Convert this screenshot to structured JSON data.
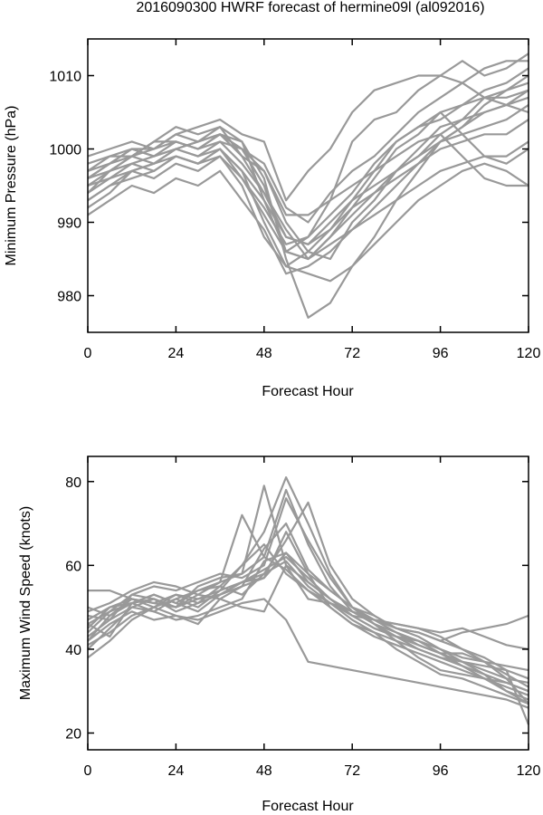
{
  "page_title": "2016090300 HWRF forecast of hermine09l (al092016)",
  "chart_data": [
    {
      "type": "line",
      "xlabel": "Forecast Hour",
      "ylabel": "Minimum Pressure (hPa)",
      "xlim": [
        0,
        120
      ],
      "ylim": [
        975,
        1015
      ],
      "xticks": [
        0,
        24,
        48,
        72,
        96,
        120
      ],
      "yticks": [
        980,
        990,
        1000,
        1010
      ],
      "grid": false,
      "line_color": "#999999",
      "x": [
        0,
        6,
        12,
        18,
        24,
        30,
        36,
        42,
        48,
        54,
        60,
        66,
        72,
        78,
        84,
        90,
        96,
        102,
        108,
        114,
        120
      ],
      "series": [
        {
          "values": [
            996,
            998,
            1000,
            999,
            1001,
            1000,
            1002,
            1001,
            996,
            985,
            977,
            979,
            984,
            988,
            993,
            997,
            1001,
            1003,
            1006,
            1008,
            1010
          ]
        },
        {
          "values": [
            994,
            997,
            999,
            1000,
            1002,
            1001,
            1003,
            1001,
            993,
            986,
            988,
            993,
            1001,
            1004,
            1005,
            1008,
            1010,
            1012,
            1010,
            1011,
            1013
          ]
        },
        {
          "values": [
            992,
            994,
            997,
            998,
            1000,
            999,
            1001,
            998,
            994,
            989,
            985,
            988,
            992,
            996,
            1000,
            1002,
            1005,
            1006,
            1008,
            1009,
            1011
          ]
        },
        {
          "values": [
            999,
            1000,
            1001,
            1000,
            1002,
            1003,
            1004,
            1002,
            1001,
            993,
            997,
            1000,
            1005,
            1008,
            1009,
            1010,
            1010,
            1009,
            1007,
            1006,
            1005
          ]
        },
        {
          "values": [
            997,
            999,
            999,
            1001,
            1003,
            1002,
            1003,
            999,
            997,
            990,
            986,
            985,
            990,
            993,
            997,
            999,
            1002,
            1004,
            1007,
            1008,
            1009
          ]
        },
        {
          "values": [
            995,
            996,
            998,
            997,
            999,
            998,
            1000,
            997,
            990,
            984,
            983,
            982,
            984,
            987,
            990,
            993,
            995,
            997,
            998,
            997,
            995
          ]
        },
        {
          "values": [
            993,
            995,
            997,
            996,
            998,
            997,
            999,
            995,
            988,
            984,
            986,
            989,
            993,
            997,
            1001,
            1003,
            1005,
            1002,
            999,
            998,
            1000
          ]
        },
        {
          "values": [
            996,
            997,
            999,
            1001,
            1001,
            1000,
            1001,
            1000,
            995,
            986,
            985,
            988,
            991,
            994,
            997,
            1000,
            1003,
            1004,
            1005,
            1006,
            1008
          ]
        },
        {
          "values": [
            998,
            999,
            1000,
            999,
            1000,
            1001,
            1002,
            1000,
            998,
            992,
            990,
            994,
            997,
            999,
            1002,
            1005,
            1007,
            1009,
            1011,
            1012,
            1012
          ]
        },
        {
          "values": [
            994,
            996,
            997,
            998,
            999,
            998,
            999,
            996,
            992,
            987,
            988,
            991,
            994,
            998,
            1001,
            1003,
            1004,
            1006,
            1007,
            1007,
            1008
          ]
        },
        {
          "values": [
            991,
            993,
            995,
            994,
            996,
            995,
            997,
            993,
            989,
            983,
            984,
            986,
            989,
            992,
            995,
            998,
            1001,
            1003,
            1005,
            1006,
            1007
          ]
        },
        {
          "values": [
            997,
            998,
            1000,
            1000,
            1001,
            1000,
            1002,
            999,
            994,
            988,
            987,
            990,
            993,
            995,
            997,
            999,
            1001,
            1002,
            1003,
            1004,
            1006
          ]
        },
        {
          "values": [
            995,
            997,
            998,
            999,
            1000,
            999,
            1000,
            997,
            993,
            988,
            987,
            989,
            992,
            994,
            996,
            998,
            1000,
            1001,
            1002,
            1002,
            1004
          ]
        },
        {
          "values": [
            996,
            998,
            999,
            998,
            1000,
            1001,
            1002,
            1000,
            997,
            991,
            991,
            993,
            995,
            997,
            999,
            1001,
            1002,
            999,
            996,
            995,
            995
          ]
        },
        {
          "values": [
            993,
            995,
            996,
            997,
            999,
            998,
            1000,
            996,
            991,
            986,
            985,
            987,
            989,
            991,
            993,
            995,
            997,
            998,
            999,
            999,
            1001
          ]
        }
      ]
    },
    {
      "type": "line",
      "xlabel": "Forecast Hour",
      "ylabel": "Maximum Wind Speed (knots)",
      "xlim": [
        0,
        120
      ],
      "ylim": [
        16,
        86
      ],
      "xticks": [
        0,
        24,
        48,
        72,
        96,
        120
      ],
      "yticks": [
        20,
        40,
        60,
        80
      ],
      "grid": false,
      "line_color": "#999999",
      "x": [
        0,
        6,
        12,
        18,
        24,
        30,
        36,
        42,
        48,
        54,
        60,
        66,
        72,
        78,
        84,
        90,
        96,
        102,
        108,
        114,
        120
      ],
      "series": [
        {
          "values": [
            42,
            48,
            52,
            50,
            53,
            51,
            55,
            60,
            68,
            81,
            70,
            58,
            50,
            46,
            42,
            40,
            38,
            36,
            34,
            32,
            30
          ]
        },
        {
          "values": [
            45,
            50,
            51,
            53,
            51,
            54,
            56,
            72,
            62,
            78,
            65,
            55,
            49,
            46,
            44,
            41,
            39,
            37,
            35,
            33,
            32
          ]
        },
        {
          "values": [
            48,
            47,
            53,
            52,
            50,
            55,
            57,
            58,
            79,
            60,
            56,
            52,
            48,
            45,
            43,
            42,
            40,
            38,
            37,
            36,
            35
          ]
        },
        {
          "values": [
            40,
            45,
            50,
            49,
            52,
            50,
            54,
            56,
            58,
            66,
            75,
            60,
            52,
            48,
            45,
            43,
            40,
            37,
            34,
            30,
            27
          ]
        },
        {
          "values": [
            54,
            54,
            52,
            51,
            50,
            52,
            53,
            55,
            57,
            63,
            58,
            54,
            50,
            47,
            44,
            42,
            39,
            36,
            33,
            30,
            28
          ]
        },
        {
          "values": [
            44,
            49,
            53,
            55,
            54,
            56,
            58,
            57,
            60,
            76,
            66,
            57,
            50,
            46,
            43,
            40,
            38,
            37,
            36,
            35,
            33
          ]
        },
        {
          "values": [
            47,
            50,
            52,
            51,
            53,
            52,
            54,
            60,
            65,
            58,
            54,
            51,
            48,
            47,
            46,
            45,
            43,
            40,
            37,
            34,
            31
          ]
        },
        {
          "values": [
            42,
            46,
            49,
            47,
            48,
            47,
            49,
            51,
            52,
            47,
            37,
            36,
            35,
            34,
            33,
            32,
            31,
            30,
            29,
            28,
            26
          ]
        },
        {
          "values": [
            46,
            43,
            51,
            52,
            50,
            53,
            52,
            50,
            49,
            60,
            52,
            51,
            49,
            47,
            45,
            44,
            42,
            40,
            38,
            35,
            22
          ]
        },
        {
          "values": [
            50,
            48,
            51,
            49,
            47,
            48,
            50,
            52,
            61,
            63,
            56,
            52,
            48,
            45,
            43,
            41,
            39,
            39,
            37,
            33,
            27
          ]
        },
        {
          "values": [
            43,
            47,
            50,
            52,
            49,
            51,
            53,
            56,
            59,
            62,
            57,
            52,
            49,
            47,
            46,
            45,
            44,
            45,
            43,
            41,
            40
          ]
        },
        {
          "values": [
            38,
            42,
            47,
            50,
            48,
            46,
            52,
            55,
            64,
            70,
            59,
            54,
            50,
            48,
            45,
            44,
            42,
            44,
            45,
            46,
            48
          ]
        },
        {
          "values": [
            46,
            49,
            51,
            53,
            51,
            49,
            53,
            56,
            57,
            68,
            58,
            50,
            46,
            44,
            42,
            38,
            35,
            34,
            33,
            32,
            30
          ]
        },
        {
          "values": [
            41,
            44,
            48,
            50,
            52,
            54,
            55,
            53,
            58,
            61,
            55,
            51,
            47,
            44,
            40,
            37,
            34,
            33,
            31,
            29,
            27
          ]
        },
        {
          "values": [
            49,
            51,
            54,
            56,
            55,
            53,
            56,
            58,
            62,
            59,
            54,
            50,
            46,
            43,
            41,
            39,
            37,
            35,
            33,
            31,
            29
          ]
        }
      ]
    }
  ]
}
